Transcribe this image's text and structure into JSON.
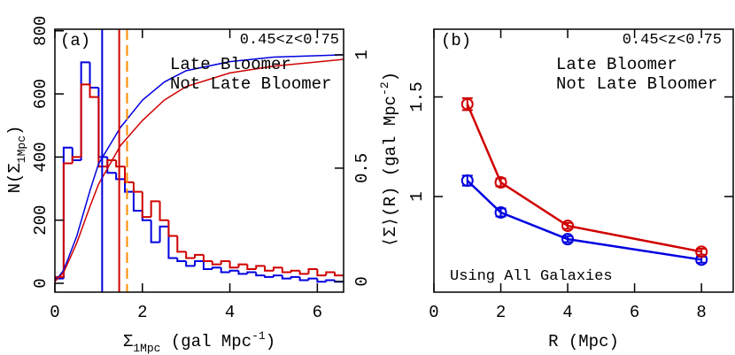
{
  "chart_data": [
    {
      "type": "histogram",
      "panel_label": "(a)",
      "annotation": "0.45<z<0.75",
      "xlabel": [
        {
          "text": "Σ"
        },
        {
          "text": "1Mpc",
          "script": "sub"
        },
        {
          "text": " (gal Mpc"
        },
        {
          "text": "-1",
          "script": "sup"
        },
        {
          "text": ")"
        }
      ],
      "ylabel": [
        {
          "text": "N(Σ"
        },
        {
          "text": "1Mpc",
          "script": "sub"
        },
        {
          "text": ")"
        }
      ],
      "xlim": [
        0,
        6.6
      ],
      "ylim": [
        -28,
        805
      ],
      "y2lim": [
        -0.047,
        1.113
      ],
      "xticks": [
        0,
        2,
        4,
        6
      ],
      "yticks": [
        0,
        200,
        400,
        600,
        800
      ],
      "y2ticks": [
        0,
        0.5,
        1
      ],
      "bins": [
        0,
        0.2,
        0.4,
        0.6,
        0.8,
        1,
        1.2,
        1.4,
        1.6,
        1.8,
        2,
        2.2,
        2.4,
        2.6,
        2.8,
        3,
        3.2,
        3.4,
        3.6,
        3.8,
        4,
        4.2,
        4.4,
        4.6,
        4.8,
        5,
        5.2,
        5.4,
        5.6,
        5.8,
        6,
        6.2,
        6.4,
        6.6
      ],
      "series": [
        {
          "name": "Late Bloomer",
          "color": "#0000e0",
          "values": [
            15,
            430,
            390,
            700,
            620,
            400,
            350,
            330,
            290,
            230,
            200,
            130,
            180,
            80,
            70,
            55,
            70,
            45,
            50,
            35,
            40,
            30,
            35,
            25,
            20,
            25,
            15,
            20,
            10,
            15,
            5,
            10,
            5
          ]
        },
        {
          "name": "Not Late Bloomer",
          "color": "#d00000",
          "values": [
            20,
            380,
            400,
            630,
            590,
            370,
            390,
            370,
            320,
            290,
            210,
            260,
            200,
            150,
            100,
            80,
            90,
            70,
            60,
            70,
            50,
            60,
            45,
            55,
            40,
            50,
            35,
            40,
            30,
            45,
            25,
            35,
            25
          ]
        }
      ],
      "curves": [
        {
          "color": "#0000e0",
          "axis": "y2",
          "x": [
            0,
            0.2,
            0.5,
            0.8,
            1,
            1.5,
            2,
            2.5,
            3,
            4,
            5,
            6.6
          ],
          "values": [
            0,
            0.05,
            0.2,
            0.4,
            0.52,
            0.68,
            0.8,
            0.88,
            0.93,
            0.97,
            0.99,
            1
          ]
        },
        {
          "color": "#d00000",
          "axis": "y2",
          "x": [
            0,
            0.2,
            0.5,
            0.8,
            1,
            1.5,
            2,
            2.5,
            3,
            4,
            5,
            6.6
          ],
          "values": [
            0,
            0.04,
            0.17,
            0.33,
            0.43,
            0.6,
            0.71,
            0.8,
            0.86,
            0.92,
            0.95,
            0.98
          ]
        }
      ],
      "vlines": [
        {
          "x": 1.08,
          "color": "#0000e0",
          "dashed": false
        },
        {
          "x": 1.47,
          "color": "#d00000",
          "dashed": false
        },
        {
          "x": 1.65,
          "color": "#ff8c00",
          "dashed": true
        }
      ]
    },
    {
      "type": "line",
      "panel_label": "(b)",
      "annotation": "0.45<z<0.75",
      "note": "Using All Galaxies",
      "xlabel": [
        {
          "text": "R (Mpc)"
        }
      ],
      "ylabel": [
        {
          "text": "⟨Σ⟩(R)  (gal Mpc"
        },
        {
          "text": "-2",
          "script": "sup"
        },
        {
          "text": ")"
        }
      ],
      "xlim": [
        0,
        8.95
      ],
      "ylim": [
        0.52,
        1.84
      ],
      "xticks": [
        0,
        2,
        4,
        6,
        8
      ],
      "yticks": [
        1,
        1.5
      ],
      "x": [
        1,
        2,
        4,
        8
      ],
      "series": [
        {
          "name": "Late Bloomer",
          "color": "#0000e0",
          "values": [
            1.08,
            0.92,
            0.786,
            0.683
          ],
          "errors": [
            0.025,
            0.02,
            0.015,
            0.015
          ]
        },
        {
          "name": "Not Late Bloomer",
          "color": "#d00000",
          "values": [
            1.464,
            1.071,
            0.853,
            0.723
          ],
          "errors": [
            0.03,
            0.02,
            0.015,
            0.015
          ]
        }
      ]
    }
  ]
}
